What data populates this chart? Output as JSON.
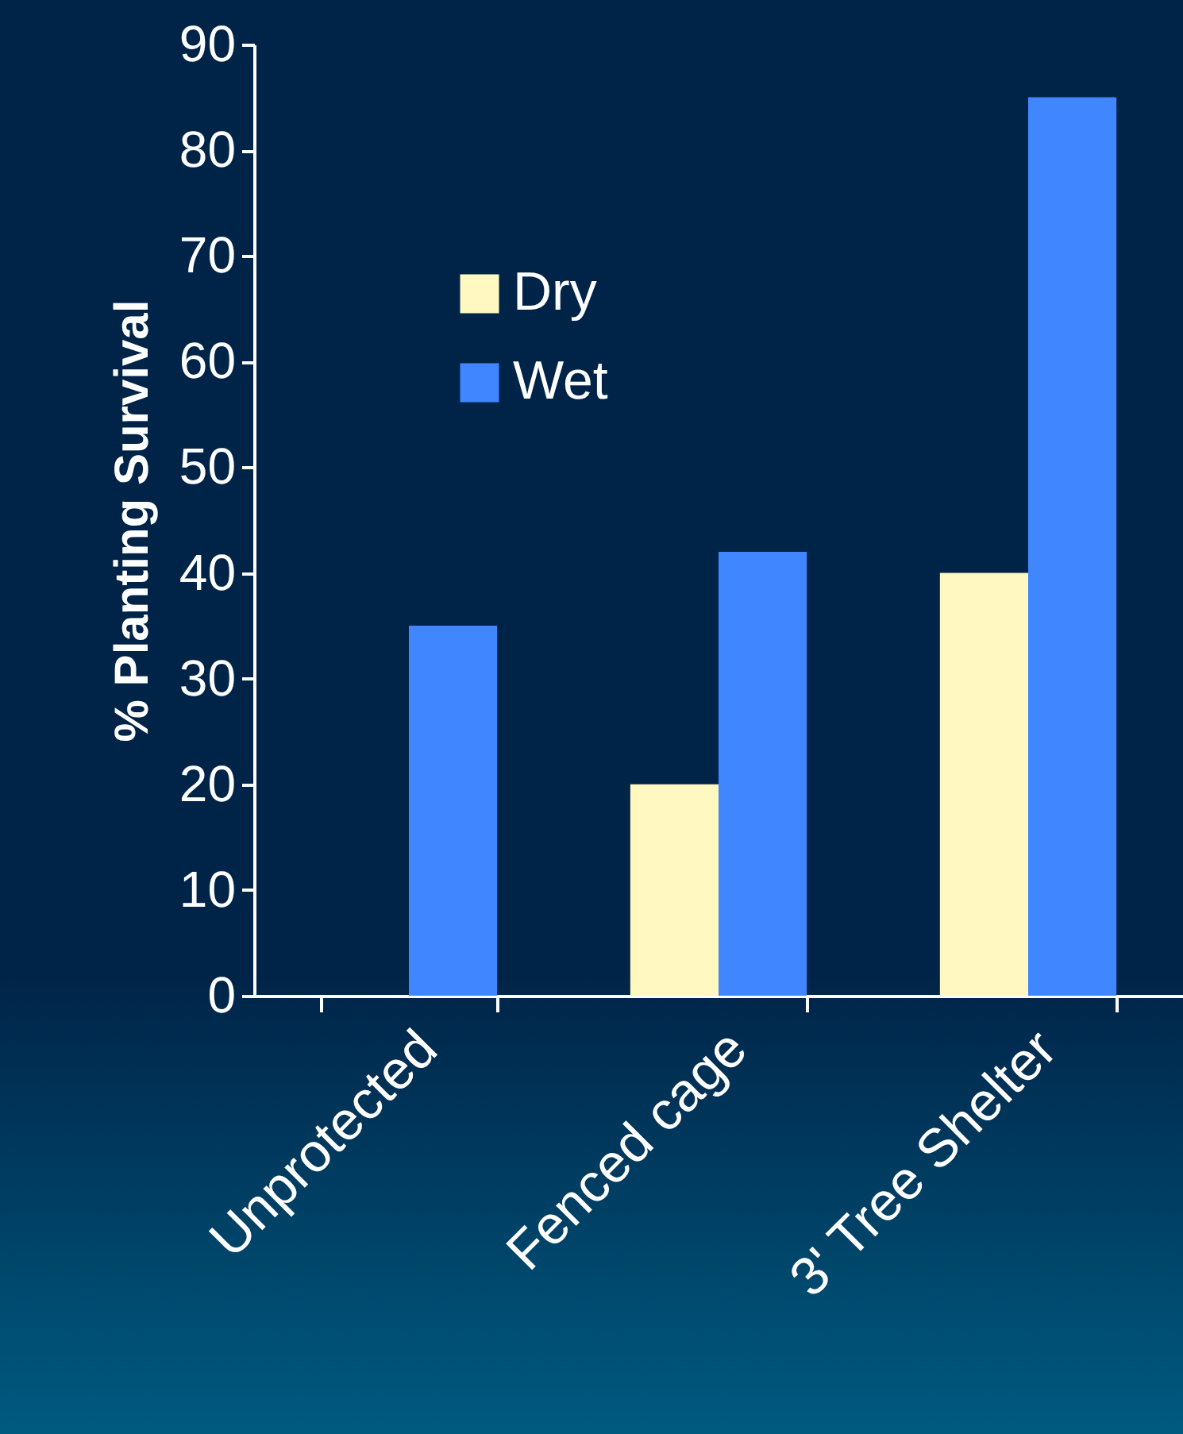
{
  "chart_data": {
    "type": "bar",
    "ylabel": "% Planting Survival",
    "categories": [
      "Unprotected",
      "Fenced cage",
      "3' Tree Shelter"
    ],
    "series": [
      {
        "name": "Dry",
        "color": "#fff8c0",
        "values": [
          0,
          20,
          40
        ]
      },
      {
        "name": "Wet",
        "color": "#4087ff",
        "values": [
          35,
          42,
          85
        ]
      }
    ],
    "ylim": [
      0,
      90
    ],
    "yticks": [
      0,
      10,
      20,
      30,
      40,
      50,
      60,
      70,
      80,
      90
    ],
    "legend": "top left"
  }
}
